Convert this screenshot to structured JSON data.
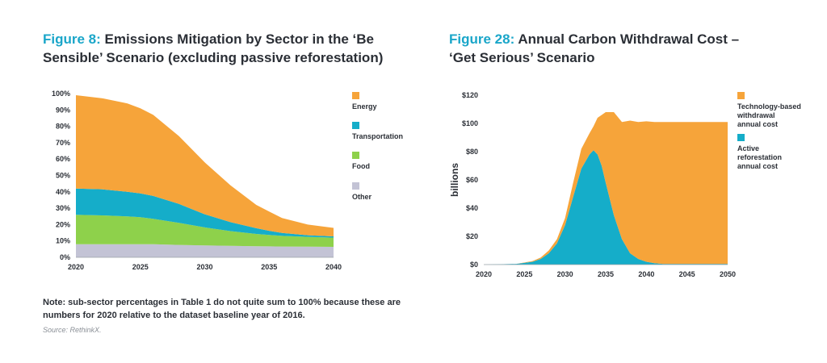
{
  "left_figure": {
    "number": "Figure 8:",
    "title": "Emissions Mitigation by Sector in the ‘Be Sensible’ Scenario (excluding passive reforestation)"
  },
  "right_figure": {
    "number": "Figure 28:",
    "title": "Annual Carbon Withdrawal Cost – ‘Get Serious’ Scenario"
  },
  "note": "Note: sub-sector percentages in Table 1 do not quite sum to 100% because these are numbers for 2020 relative to the dataset baseline year of 2016.",
  "source": "Source: RethinkX.",
  "colors": {
    "energy": "#f6a43a",
    "transportation": "#15adc9",
    "food": "#8ed14b",
    "other": "#c3c3d5",
    "title_accent": "#1aa6c9",
    "text": "#2b2f36"
  },
  "chart_data": [
    {
      "type": "area",
      "stacked": true,
      "title": "Emissions Mitigation by Sector in the ‘Be Sensible’ Scenario (excluding passive reforestation)",
      "xlabel": "",
      "ylabel": "",
      "x": [
        2020,
        2022,
        2024,
        2025,
        2026,
        2028,
        2030,
        2032,
        2034,
        2035,
        2036,
        2038,
        2040
      ],
      "xlim": [
        2020,
        2040
      ],
      "ylim": [
        0,
        100
      ],
      "xticks": [
        "2020",
        "2025",
        "2030",
        "2035",
        "2040"
      ],
      "yticks": [
        "0%",
        "10%",
        "20%",
        "30%",
        "40%",
        "50%",
        "60%",
        "70%",
        "80%",
        "90%",
        "100%"
      ],
      "series": [
        {
          "name": "Other",
          "key": "other",
          "values": [
            8,
            8,
            8,
            8,
            8,
            7.6,
            7.3,
            7,
            6.8,
            6.7,
            6.6,
            6.5,
            6.4
          ]
        },
        {
          "name": "Food",
          "key": "food",
          "values": [
            18,
            17.6,
            17,
            16.5,
            15.5,
            13.5,
            11,
            9,
            7.5,
            7,
            6.5,
            6,
            5.6
          ]
        },
        {
          "name": "Transportation",
          "key": "transportation",
          "values": [
            16,
            16,
            15,
            14.5,
            14,
            11.5,
            8,
            5.5,
            3.5,
            2.5,
            1.8,
            1,
            0.8
          ]
        },
        {
          "name": "Energy",
          "key": "energy",
          "values": [
            57,
            55.6,
            54,
            52,
            49.5,
            41.4,
            31.7,
            22.5,
            14.2,
            11.8,
            9.1,
            6.5,
            5.2
          ]
        }
      ],
      "legend": [
        {
          "label": "Energy",
          "key": "energy"
        },
        {
          "label": "Transportation",
          "key": "transportation"
        },
        {
          "label": "Food",
          "key": "food"
        },
        {
          "label": "Other",
          "key": "other"
        }
      ],
      "legend_position": "right"
    },
    {
      "type": "area",
      "stacked": true,
      "title": "Annual Carbon Withdrawal Cost – ‘Get Serious’ Scenario",
      "xlabel": "",
      "ylabel": "billions",
      "x": [
        2020,
        2022,
        2024,
        2026,
        2027,
        2028,
        2029,
        2030,
        2031,
        2032,
        2033,
        2033.5,
        2034,
        2034.5,
        2035,
        2036,
        2037,
        2038,
        2039,
        2040,
        2041,
        2042,
        2043,
        2045,
        2050
      ],
      "xlim": [
        2020,
        2050
      ],
      "ylim": [
        0,
        120
      ],
      "xticks": [
        "2020",
        "2025",
        "2030",
        "2035",
        "2040",
        "2045",
        "2050"
      ],
      "yticks": [
        "$0",
        "$20",
        "$40",
        "$60",
        "$80",
        "$100",
        "$120"
      ],
      "series": [
        {
          "name": "Active reforestation annual cost",
          "key": "transportation",
          "values": [
            0,
            0.2,
            0.5,
            2,
            4,
            8,
            15,
            28,
            48,
            68,
            78,
            81,
            78,
            70,
            58,
            35,
            18,
            8,
            4,
            2,
            1,
            0.5,
            0.5,
            0.5,
            0.5
          ]
        },
        {
          "name": "Technology-based withdrawal annual cost",
          "key": "energy",
          "values": [
            0,
            0,
            0,
            0.5,
            1,
            2,
            3,
            5,
            10,
            14,
            15,
            17,
            26,
            36,
            50,
            73,
            83,
            94,
            97,
            99.5,
            100,
            100.5,
            100.5,
            100.5,
            100.5
          ]
        }
      ],
      "legend": [
        {
          "label": "Technology-based withdrawal annual cost",
          "key": "energy"
        },
        {
          "label": "Active reforestation annual cost",
          "key": "transportation"
        }
      ],
      "legend_position": "right"
    }
  ]
}
